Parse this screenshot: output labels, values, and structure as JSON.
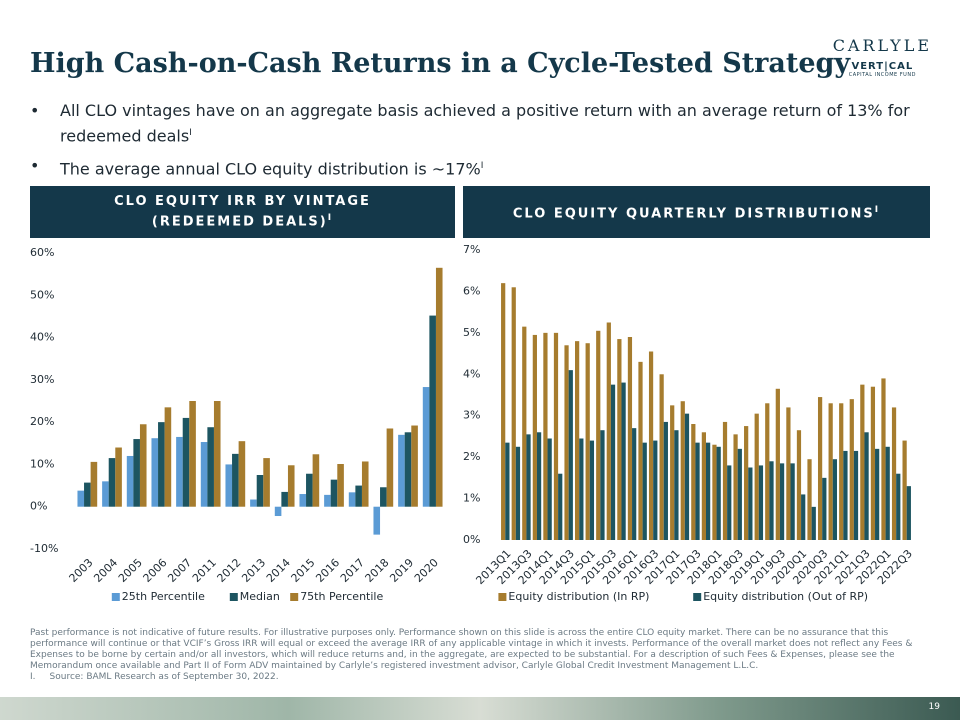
{
  "header": {
    "title": "High Cash-on-Cash Returns in a Cycle-Tested Strategy",
    "logo": "CARLYLE",
    "logo_sub": "VERT|CAL",
    "logo_sub2": "CAPITAL INCOME FUND"
  },
  "bullets": [
    {
      "text": "All CLO vintages have on an aggregate basis achieved a positive return with an average return of 13% for redeemed deals",
      "note": "I"
    },
    {
      "text": "The average annual CLO equity distribution is ~17%",
      "note": "I"
    }
  ],
  "footnote": {
    "text": "Past performance is not indicative of future results. For illustrative purposes only. Performance shown on this slide is across the entire CLO equity market. There can be no assurance that this performance will continue or that VCIF’s Gross IRR will equal or exceed the average IRR of any applicable vintage in which it invests. Performance of the overall market does not reflect any Fees & Expenses to be borne by certain and/or all investors, which will reduce returns and, in the aggregate, are expected to be substantial. For a description of such Fees & Expenses, please see the Memorandum once available and Part II of Form ADV maintained by Carlyle’s registered investment advisor, Carlyle Global Credit Investment Management L.L.C.",
    "marker": "I.",
    "source": "Source: BAML Research as of September 30, 2022."
  },
  "page_number": "19",
  "chart_data": [
    {
      "type": "bar",
      "title": "CLO EQUITY IRR BY VINTAGE (REDEEMED DEALS)",
      "title_note": "I",
      "categories": [
        "2003",
        "2004",
        "2005",
        "2006",
        "2007",
        "2011",
        "2012",
        "2013",
        "2014",
        "2015",
        "2016",
        "2017",
        "2018",
        "2019",
        "2020"
      ],
      "series": [
        {
          "name": "25th Percentile",
          "color": "#5b9bd5",
          "values": [
            3.8,
            6.0,
            12.0,
            16.2,
            16.5,
            15.3,
            10.0,
            1.7,
            -2.2,
            3.0,
            2.8,
            3.4,
            -6.6,
            17.0,
            28.3
          ]
        },
        {
          "name": "Median",
          "color": "#1d5561",
          "values": [
            5.7,
            11.5,
            16.0,
            20.0,
            21.0,
            18.8,
            12.5,
            7.5,
            3.5,
            7.8,
            6.4,
            5.0,
            4.6,
            17.6,
            45.2
          ]
        },
        {
          "name": "75th Percentile",
          "color": "#a67c2e",
          "values": [
            10.6,
            14.0,
            19.5,
            23.5,
            25.0,
            25.0,
            15.5,
            11.5,
            9.8,
            12.4,
            10.1,
            10.7,
            18.5,
            19.2,
            56.5
          ]
        }
      ],
      "ylim": [
        -10,
        60
      ],
      "yticks": [
        {
          "value": -10,
          "label": "-10%"
        },
        {
          "value": 0,
          "label": "0%"
        },
        {
          "value": 10,
          "label": "10%"
        },
        {
          "value": 20,
          "label": "20%"
        },
        {
          "value": 30,
          "label": "30%"
        },
        {
          "value": 40,
          "label": "40%"
        },
        {
          "value": 50,
          "label": "50%"
        },
        {
          "value": 60,
          "label": "60%"
        }
      ]
    },
    {
      "type": "bar",
      "title": "CLO EQUITY QUARTERLY DISTRIBUTIONS",
      "title_note": "I",
      "categories": [
        "2013Q1",
        null,
        "2013Q3",
        null,
        "2014Q1",
        null,
        "2014Q3",
        null,
        "2015Q1",
        null,
        "2015Q3",
        null,
        "2016Q1",
        null,
        "2016Q3",
        null,
        "2017Q1",
        null,
        "2017Q3",
        null,
        "2018Q1",
        null,
        "2018Q3",
        null,
        "2019Q1",
        null,
        "2019Q3",
        null,
        "2020Q1",
        null,
        "2020Q3",
        null,
        "2021Q1",
        null,
        "2021Q3",
        null,
        "2022Q1",
        null,
        "2022Q3"
      ],
      "series": [
        {
          "name": "Equity distribution (In RP)",
          "color": "#a67c2e",
          "values": [
            6.2,
            6.1,
            5.15,
            4.95,
            5.0,
            5.0,
            4.7,
            4.8,
            4.75,
            5.05,
            5.25,
            4.85,
            4.9,
            4.3,
            4.55,
            4.0,
            3.25,
            3.35,
            2.8,
            2.6,
            2.3,
            2.85,
            2.55,
            2.75,
            3.05,
            3.3,
            3.65,
            3.2,
            2.65,
            1.95,
            3.45,
            3.3,
            3.3,
            3.4,
            3.75,
            3.7,
            3.9,
            3.2,
            2.4
          ]
        },
        {
          "name": "Equity distribution (Out of RP)",
          "color": "#1d5561",
          "values": [
            2.35,
            2.25,
            2.55,
            2.6,
            2.45,
            1.6,
            4.1,
            2.45,
            2.4,
            2.65,
            3.75,
            3.8,
            2.7,
            2.35,
            2.4,
            2.85,
            2.65,
            3.05,
            2.35,
            2.35,
            2.25,
            1.8,
            2.2,
            1.75,
            1.8,
            1.9,
            1.85,
            1.85,
            1.1,
            0.8,
            1.5,
            1.95,
            2.15,
            2.15,
            2.6,
            2.2,
            2.25,
            1.6,
            1.3
          ]
        }
      ],
      "ylim": [
        0,
        7
      ],
      "yticks": [
        {
          "value": 0,
          "label": "0%"
        },
        {
          "value": 1,
          "label": "1%"
        },
        {
          "value": 2,
          "label": "2%"
        },
        {
          "value": 3,
          "label": "3%"
        },
        {
          "value": 4,
          "label": "4%"
        },
        {
          "value": 5,
          "label": "5%"
        },
        {
          "value": 6,
          "label": "6%"
        },
        {
          "value": 7,
          "label": "7%"
        }
      ]
    }
  ]
}
